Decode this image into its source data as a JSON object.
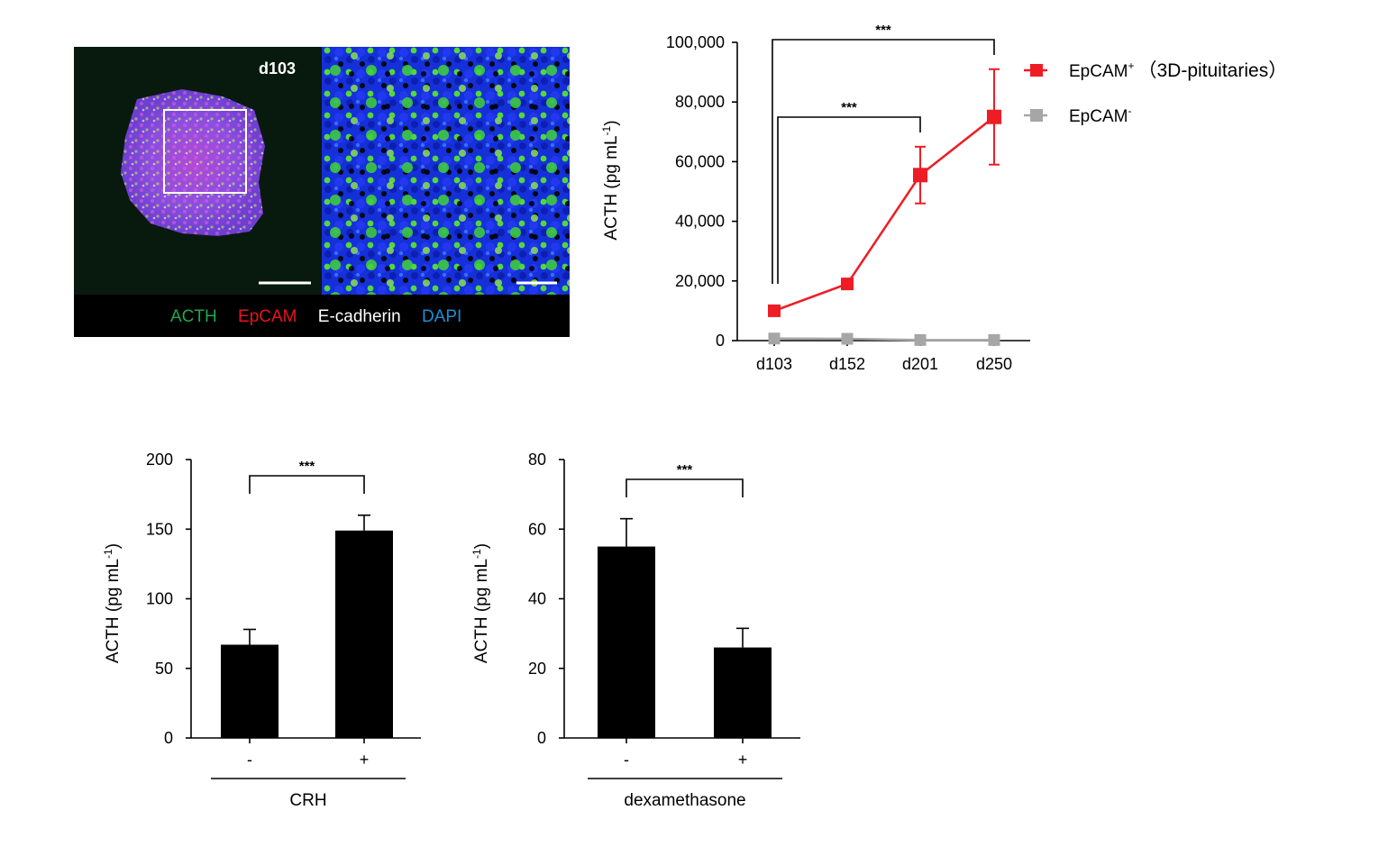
{
  "micrograph": {
    "day_label": "d103",
    "stain_labels": [
      {
        "text": "ACTH",
        "color": "#1fa84b"
      },
      {
        "text": "EpCAM",
        "color": "#e8141c"
      },
      {
        "text": "E-cadherin",
        "color": "#ffffff"
      },
      {
        "text": "DAPI",
        "color": "#1b8ed6"
      }
    ]
  },
  "chart_data": [
    {
      "type": "line",
      "ylabel": "ACTH (pg mL",
      "ylabel_sup": "-1",
      "ylabel_close": ")",
      "x": [
        "d103",
        "d152",
        "d201",
        "d250"
      ],
      "ylim": [
        0,
        100000
      ],
      "yticks": [
        0,
        20000,
        40000,
        60000,
        80000,
        100000
      ],
      "ytick_labels": [
        "0",
        "20,000",
        "40,000",
        "60,000",
        "80,000",
        "100,000"
      ],
      "legend_position": "right",
      "series": [
        {
          "name": "EpCAM",
          "name_sup": "+",
          "name_suffix": "（3D-pituitaries）",
          "color": "#ee1c25",
          "values": [
            10000,
            19000,
            55500,
            75000
          ],
          "errors": [
            null,
            null,
            9500,
            16000
          ]
        },
        {
          "name": "EpCAM",
          "name_sup": "-",
          "name_suffix": "",
          "color": "#a6a6a6",
          "values": [
            700,
            600,
            200,
            200
          ],
          "errors": [
            null,
            null,
            null,
            null
          ]
        }
      ],
      "significance": [
        {
          "from": "d103",
          "to": "d201",
          "label": "***"
        },
        {
          "from": "d103",
          "to": "d250",
          "label": "***"
        }
      ]
    },
    {
      "type": "bar",
      "ylabel": "ACTH (pg mL",
      "ylabel_sup": "-1",
      "ylabel_close": ")",
      "categories": [
        "-",
        "+"
      ],
      "values": [
        67,
        149
      ],
      "errors": [
        11,
        11
      ],
      "ylim": [
        0,
        200
      ],
      "yticks": [
        0,
        50,
        100,
        150,
        200
      ],
      "ytick_labels": [
        "0",
        "50",
        "100",
        "150",
        "200"
      ],
      "treatment": "CRH",
      "significance": "***"
    },
    {
      "type": "bar",
      "ylabel": "ACTH (pg mL",
      "ylabel_sup": "-1",
      "ylabel_close": ")",
      "categories": [
        "-",
        "+"
      ],
      "values": [
        55,
        26
      ],
      "errors": [
        8,
        5.5
      ],
      "ylim": [
        0,
        80
      ],
      "yticks": [
        0,
        20,
        40,
        60,
        80
      ],
      "ytick_labels": [
        "0",
        "20",
        "40",
        "60",
        "80"
      ],
      "treatment": "dexamethasone",
      "significance": "***"
    }
  ]
}
